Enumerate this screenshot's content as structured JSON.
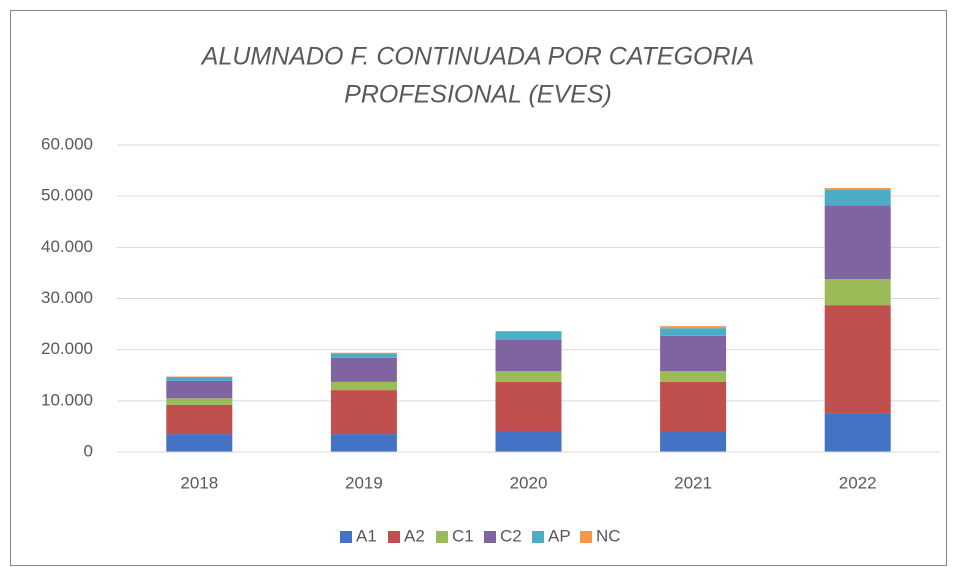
{
  "chart_data": {
    "type": "stacked_bar",
    "title": [
      "ALUMNADO F. CONTINUADA POR CATEGORIA",
      "PROFESIONAL (EVES)"
    ],
    "categories": [
      "2018",
      "2019",
      "2020",
      "2021",
      "2022"
    ],
    "series": [
      {
        "name": "A1",
        "color": "#4472c4",
        "values": [
          3500,
          3500,
          4100,
          3900,
          7600
        ]
      },
      {
        "name": "A2",
        "color": "#c0504d",
        "values": [
          5700,
          8600,
          9600,
          9800,
          21100
        ]
      },
      {
        "name": "C1",
        "color": "#9bbb59",
        "values": [
          1300,
          1600,
          2100,
          2100,
          5100
        ]
      },
      {
        "name": "C2",
        "color": "#8064a2",
        "values": [
          3400,
          4700,
          6100,
          6900,
          14400
        ]
      },
      {
        "name": "AP",
        "color": "#4bacc6",
        "values": [
          750,
          900,
          1700,
          1500,
          3000
        ]
      },
      {
        "name": "NC",
        "color": "#f79646",
        "values": [
          100,
          100,
          0,
          400,
          400
        ]
      }
    ],
    "ylim": [
      0,
      60000
    ],
    "yticks": [
      0,
      {
        "value": 10000,
        "label": "10.000"
      },
      {
        "value": 20000,
        "label": "20.000"
      },
      {
        "value": 30000,
        "label": "30.000"
      },
      {
        "value": 40000,
        "label": "40.000"
      },
      {
        "value": 50000,
        "label": "50.000"
      },
      {
        "value": 60000,
        "label": "60.000"
      }
    ],
    "grid": true,
    "legend": "bottom"
  }
}
